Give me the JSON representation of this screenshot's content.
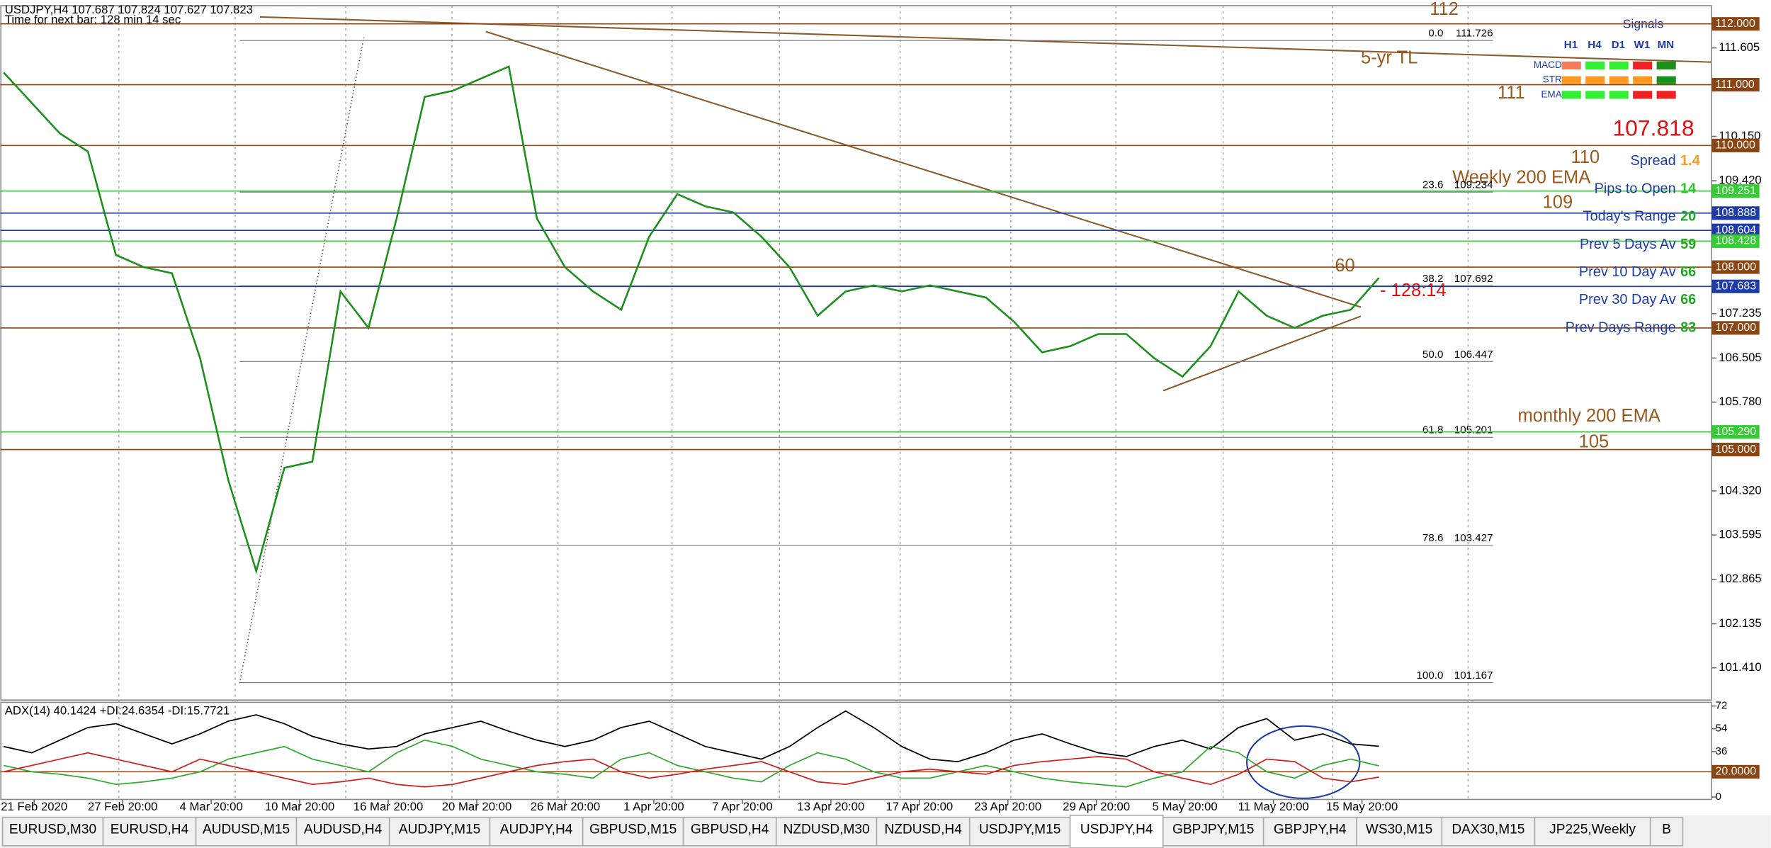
{
  "header": {
    "symbol_line": "USDJPY,H4  107.687 107.824 107.627 107.823",
    "timer": "Time for next bar: 128 min 14 sec"
  },
  "price_axis": {
    "ylim": [
      100.88,
      112.3
    ],
    "ticks": [
      111.605,
      {
        "value": 110.15,
        "label": "110.150"
      },
      {
        "value": 109.42,
        "label": "109.420"
      },
      107.235,
      106.505,
      {
        "value": 105.78,
        "label": "105.780"
      },
      {
        "value": 104.32,
        "label": "104.320"
      },
      103.595,
      102.865,
      102.135,
      {
        "value": 101.41,
        "label": "101.410"
      }
    ]
  },
  "levels": [
    {
      "value": 112,
      "label": "112.000",
      "color": "#8b4513"
    },
    {
      "value": 111,
      "label": "111.000",
      "color": "#8b4513"
    },
    {
      "value": 110,
      "label": "110.000",
      "color": "#8b4513"
    },
    {
      "value": 109.251,
      "label": "109.251",
      "color": "#33cc33"
    },
    {
      "value": 108.888,
      "label": "108.888",
      "color": "#1e3ca8"
    },
    {
      "value": 108.604,
      "label": "108.604",
      "color": "#1e3ca8"
    },
    {
      "value": 108.428,
      "label": "108.428",
      "color": "#33cc33"
    },
    {
      "value": 108,
      "label": "108.000",
      "color": "#8b4513"
    },
    {
      "value": 107.683,
      "label": "107.683",
      "color": "#1e3ca8"
    },
    {
      "value": 107,
      "label": "107.000",
      "color": "#8b4513"
    },
    {
      "value": 105.29,
      "label": "105.290",
      "color": "#33cc33"
    },
    {
      "value": 105,
      "label": "105.000",
      "color": "#8b4513"
    }
  ],
  "fib_levels": [
    {
      "ratio": "0.0",
      "price": 111.726
    },
    {
      "ratio": "23.6",
      "price": 109.234
    },
    {
      "ratio": "38.2",
      "price": 107.692
    },
    {
      "ratio": "50.0",
      "price": 106.447
    },
    {
      "ratio": "61.8",
      "price": 105.201
    },
    {
      "ratio": "78.6",
      "price": 103.427
    },
    {
      "ratio": "100.0",
      "price": 101.167
    }
  ],
  "price_series": {
    "color": "#1a8f1a",
    "values": [
      111.2,
      110.7,
      110.2,
      109.9,
      108.2,
      108.0,
      107.9,
      106.5,
      104.5,
      103.0,
      104.7,
      104.8,
      107.6,
      107.0,
      108.8,
      110.8,
      110.9,
      111.1,
      111.3,
      108.8,
      108.0,
      107.6,
      107.3,
      108.5,
      109.2,
      109.0,
      108.9,
      108.5,
      108.0,
      107.2,
      107.6,
      107.7,
      107.6,
      107.7,
      107.6,
      107.5,
      107.1,
      106.6,
      106.7,
      106.9,
      106.9,
      106.5,
      106.2,
      106.7,
      107.6,
      107.2,
      107.0,
      107.2,
      107.3,
      107.823
    ]
  },
  "annotations": [
    "112",
    "5-yr TL",
    "111",
    "107.818",
    "110",
    "Weekly 200 EMA",
    "109",
    "60",
    "- 128:14",
    "monthly 200 EMA",
    "105"
  ],
  "signals": {
    "title": "Signals",
    "columns": [
      "H1",
      "H4",
      "D1",
      "W1",
      "MN"
    ],
    "rows": [
      {
        "label": "MACD",
        "colors": [
          "#f47c5c",
          "#33ee33",
          "#33ee33",
          "#ee2222",
          "#1a8f1a"
        ]
      },
      {
        "label": "STR",
        "colors": [
          "#ff9922",
          "#ff9922",
          "#ff9922",
          "#ff9922",
          "#1a8f1a"
        ]
      },
      {
        "label": "EMA",
        "colors": [
          "#33ee33",
          "#33ee33",
          "#33ee33",
          "#ee2222",
          "#ee2222"
        ]
      }
    ]
  },
  "info": [
    {
      "label": "Spread",
      "value": 1.4,
      "color": "#ff9922"
    },
    {
      "label": "Pips to Open",
      "value": 14,
      "color": "#22cc22"
    },
    {
      "label": "Today's Range",
      "value": 20,
      "color": "#22aa22"
    },
    {
      "label": "Prev 5 Days Av",
      "value": 59,
      "color": "#22aa22"
    },
    {
      "label": "Prev 10 Day Av",
      "value": 66,
      "color": "#22aa22"
    },
    {
      "label": "Prev 30 Day Av",
      "value": 66,
      "color": "#22aa22"
    },
    {
      "label": "Prev Days Range",
      "value": 83,
      "color": "#22aa22"
    }
  ],
  "x_labels": [
    "21 Feb 2020",
    "27 Feb 20:00",
    "4 Mar 20:00",
    "10 Mar 20:00",
    "16 Mar 20:00",
    "20 Mar 20:00",
    "26 Mar 20:00",
    "1 Apr 20:00",
    "7 Apr 20:00",
    "13 Apr 20:00",
    "17 Apr 20:00",
    "23 Apr 20:00",
    "29 Apr 20:00",
    "5 May 20:00",
    "11 May 20:00",
    "15 May 20:00"
  ],
  "adx": {
    "title": "ADX(14) 40.1424 +DI:24.6354 -DI:15.7721",
    "ylim": [
      -1,
      74
    ],
    "yticks": [
      72,
      54,
      36,
      {
        "value": 20,
        "label": "20.0000"
      },
      0
    ],
    "series": [
      {
        "color": "#000000",
        "values": [
          40,
          35,
          45,
          55,
          58,
          50,
          42,
          50,
          60,
          65,
          58,
          48,
          42,
          38,
          40,
          50,
          55,
          60,
          52,
          45,
          40,
          45,
          55,
          60,
          50,
          40,
          35,
          30,
          40,
          55,
          68,
          55,
          40,
          30,
          28,
          35,
          45,
          50,
          42,
          35,
          32,
          40,
          45,
          38,
          55,
          62,
          45,
          50,
          42,
          40.1424
        ]
      },
      {
        "color": "#33aa33",
        "values": [
          25,
          20,
          18,
          15,
          10,
          12,
          15,
          20,
          30,
          35,
          40,
          30,
          25,
          20,
          35,
          45,
          40,
          30,
          25,
          20,
          18,
          15,
          30,
          35,
          25,
          20,
          15,
          12,
          25,
          35,
          30,
          20,
          15,
          15,
          20,
          25,
          20,
          15,
          12,
          10,
          8,
          15,
          20,
          40,
          35,
          20,
          15,
          25,
          30,
          24.6354
        ]
      },
      {
        "color": "#cc2222",
        "values": [
          20,
          25,
          30,
          35,
          30,
          25,
          20,
          30,
          25,
          20,
          15,
          10,
          12,
          15,
          10,
          8,
          10,
          15,
          20,
          25,
          28,
          30,
          20,
          15,
          18,
          22,
          25,
          28,
          20,
          12,
          10,
          15,
          20,
          22,
          20,
          18,
          25,
          28,
          30,
          32,
          30,
          20,
          15,
          10,
          18,
          30,
          28,
          15,
          12,
          15.7721
        ]
      }
    ]
  },
  "tabs": [
    "EURUSD,M30",
    "EURUSD,H4",
    "AUDUSD,M15",
    "AUDUSD,H4",
    "AUDJPY,M15",
    "AUDJPY,H4",
    "GBPUSD,M15",
    "GBPUSD,H4",
    "NZDUSD,M30",
    "NZDUSD,H4",
    "USDJPY,M15",
    "USDJPY,H4",
    "GBPJPY,M15",
    "GBPJPY,H4",
    "WS30,M15",
    "DAX30,M15",
    "JP225,Weekly",
    "B"
  ],
  "active_tab": 11
}
